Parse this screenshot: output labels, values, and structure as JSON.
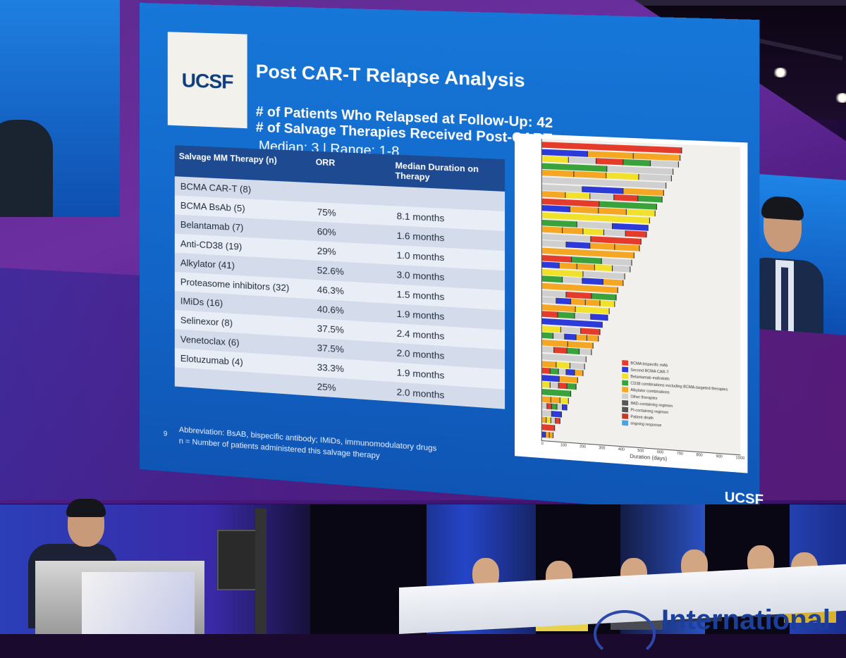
{
  "slide": {
    "logo": "UCSF",
    "title": "Post CAR-T Relapse Analysis",
    "line1": "# of Patients Who Relapsed at Follow-Up: 42",
    "line2": "# of Salvage Therapies Received Post-CART:",
    "line3": "Median: 3 | Range: 1-8",
    "table": {
      "headers": [
        "Salvage MM Therapy (n)",
        "ORR",
        "Median Duration on Therapy"
      ],
      "rows": [
        [
          "BCMA CAR-T (8)",
          "",
          ""
        ],
        [
          "BCMA BsAb (5)",
          "75%",
          "8.1 months"
        ],
        [
          "Belantamab (7)",
          "60%",
          "1.6 months"
        ],
        [
          "Anti-CD38 (19)",
          "29%",
          "1.0 months"
        ],
        [
          "Alkylator (41)",
          "52.6%",
          "3.0 months"
        ],
        [
          "Proteasome inhibitors (32)",
          "46.3%",
          "1.5 months"
        ],
        [
          "IMiDs (16)",
          "40.6%",
          "1.9 months"
        ],
        [
          "Selinexor (8)",
          "37.5%",
          "2.4 months"
        ],
        [
          "Venetoclax (6)",
          "37.5%",
          "2.0 months"
        ],
        [
          "Elotuzumab (4)",
          "33.3%",
          "1.9 months"
        ],
        [
          "",
          "25%",
          "2.0 months"
        ]
      ]
    },
    "abbreviation": "Abbreviation: BsAB, bispecific antibody; IMiDs, immunomodulatory drugs",
    "n_note": "n = Number of patients administered this salvage therapy",
    "page_number": "9",
    "footer_logo": "UCSF",
    "chart": {
      "xlabel": "Duration (days)",
      "xticks": [
        "0",
        "100",
        "200",
        "300",
        "400",
        "500",
        "600",
        "700",
        "800",
        "900",
        "1000"
      ],
      "legend": [
        {
          "label": "BCMA bispecific mAb",
          "color": "#e53b2a"
        },
        {
          "label": "Second BCMA CAR-T",
          "color": "#2b3ad8"
        },
        {
          "label": "Belantamab mafodotin",
          "color": "#f2e12a"
        },
        {
          "label": "CD38 combinations excluding BCMA-targeted therapies",
          "color": "#3aa23a"
        },
        {
          "label": "Alkylator combinations",
          "color": "#f5a623"
        },
        {
          "label": "Other therapies",
          "color": "#cfcfcf"
        },
        {
          "label": "IMiD-containing regimen",
          "color": "#555555"
        },
        {
          "label": "PI-containing regimen",
          "color": "#555555"
        },
        {
          "label": "Patient death",
          "color": "#c0392b"
        },
        {
          "label": "ongoing response",
          "color": "#4aa3df"
        }
      ]
    }
  },
  "stage": {
    "banner_text": "International"
  },
  "colors": {
    "slide_blue": "#1677d8",
    "table_header": "#1d4a90"
  }
}
